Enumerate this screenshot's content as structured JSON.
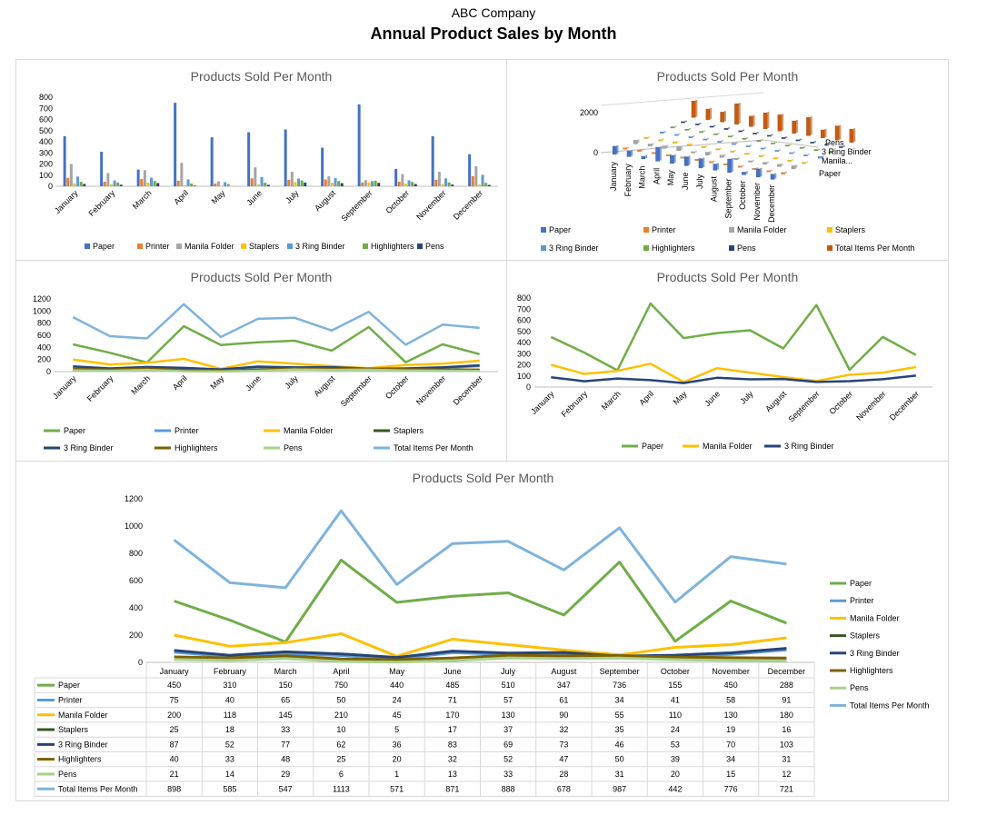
{
  "header": {
    "company": "ABC Company",
    "title": "Annual Product Sales by Month"
  },
  "colors": {
    "Paper": "#70ad47",
    "Printer": "#5b9bd5",
    "Manila Folder": "#ffc000",
    "Staplers": "#375623",
    "3 Ring Binder": "#264478",
    "Highlighters": "#7f6000",
    "Pens": "#a9d18e",
    "Total Items Per Month": "#7eb3dc"
  },
  "bar_colors": {
    "Paper": "#4472c4",
    "Printer": "#ed7d31",
    "Manila Folder": "#a5a5a5",
    "Staplers": "#ffc000",
    "3 Ring Binder": "#5b9bd5",
    "Highlighters": "#70ad47",
    "Pens": "#264478",
    "Total Items Per Month": "#c55a11"
  },
  "chart_data": [
    {
      "type": "bar",
      "title": "Products Sold Per Month",
      "ylim": [
        0,
        800
      ],
      "yticks": [
        0,
        100,
        200,
        300,
        400,
        500,
        600,
        700,
        800
      ],
      "categories": [
        "January",
        "February",
        "March",
        "April",
        "May",
        "June",
        "July",
        "August",
        "September",
        "October",
        "November",
        "December"
      ],
      "series": [
        {
          "name": "Paper",
          "values": [
            450,
            310,
            150,
            750,
            440,
            485,
            510,
            347,
            736,
            155,
            450,
            288
          ]
        },
        {
          "name": "Printer",
          "values": [
            75,
            40,
            65,
            50,
            24,
            71,
            57,
            61,
            34,
            41,
            58,
            91
          ]
        },
        {
          "name": "Manila Folder",
          "values": [
            200,
            118,
            145,
            210,
            45,
            170,
            130,
            90,
            55,
            110,
            130,
            180
          ]
        },
        {
          "name": "Staplers",
          "values": [
            25,
            18,
            33,
            10,
            5,
            17,
            37,
            32,
            35,
            24,
            19,
            16
          ]
        },
        {
          "name": "3 Ring Binder",
          "values": [
            87,
            52,
            77,
            62,
            36,
            83,
            69,
            73,
            46,
            53,
            70,
            103
          ]
        },
        {
          "name": "Highlighters",
          "values": [
            40,
            33,
            48,
            25,
            20,
            32,
            52,
            47,
            50,
            39,
            34,
            31
          ]
        },
        {
          "name": "Pens",
          "values": [
            21,
            14,
            29,
            6,
            1,
            13,
            33,
            28,
            31,
            20,
            15,
            12
          ]
        }
      ],
      "legend": "bottom"
    },
    {
      "type": "bar",
      "subtype": "3d-column",
      "title": "Products Sold Per Month",
      "yticks": [
        0,
        2000
      ],
      "depth_labels": [
        "Pens",
        "3 Ring Binder",
        "Manila...",
        "Paper"
      ],
      "categories": [
        "January",
        "February",
        "March",
        "April",
        "May",
        "June",
        "July",
        "August",
        "September",
        "October",
        "November",
        "December"
      ],
      "series": [
        {
          "name": "Paper",
          "values": [
            450,
            310,
            150,
            750,
            440,
            485,
            510,
            347,
            736,
            155,
            450,
            288
          ]
        },
        {
          "name": "Printer",
          "values": [
            75,
            40,
            65,
            50,
            24,
            71,
            57,
            61,
            34,
            41,
            58,
            91
          ]
        },
        {
          "name": "Manila Folder",
          "values": [
            200,
            118,
            145,
            210,
            45,
            170,
            130,
            90,
            55,
            110,
            130,
            180
          ]
        },
        {
          "name": "Staplers",
          "values": [
            25,
            18,
            33,
            10,
            5,
            17,
            37,
            32,
            35,
            24,
            19,
            16
          ]
        },
        {
          "name": "3 Ring Binder",
          "values": [
            87,
            52,
            77,
            62,
            36,
            83,
            69,
            73,
            46,
            53,
            70,
            103
          ]
        },
        {
          "name": "Highlighters",
          "values": [
            40,
            33,
            48,
            25,
            20,
            32,
            52,
            47,
            50,
            39,
            34,
            31
          ]
        },
        {
          "name": "Pens",
          "values": [
            21,
            14,
            29,
            6,
            1,
            13,
            33,
            28,
            31,
            20,
            15,
            12
          ]
        },
        {
          "name": "Total Items Per Month",
          "values": [
            898,
            585,
            547,
            1113,
            571,
            871,
            888,
            678,
            987,
            442,
            776,
            721
          ]
        }
      ],
      "legend": "bottom"
    },
    {
      "type": "line",
      "title": "Products Sold Per Month",
      "ylim": [
        0,
        1200
      ],
      "yticks": [
        0,
        200,
        400,
        600,
        800,
        1000,
        1200
      ],
      "categories": [
        "January",
        "February",
        "March",
        "April",
        "May",
        "June",
        "July",
        "August",
        "September",
        "October",
        "November",
        "December"
      ],
      "series": [
        {
          "name": "Paper",
          "values": [
            450,
            310,
            150,
            750,
            440,
            485,
            510,
            347,
            736,
            155,
            450,
            288
          ]
        },
        {
          "name": "Printer",
          "values": [
            75,
            40,
            65,
            50,
            24,
            71,
            57,
            61,
            34,
            41,
            58,
            91
          ]
        },
        {
          "name": "Manila Folder",
          "values": [
            200,
            118,
            145,
            210,
            45,
            170,
            130,
            90,
            55,
            110,
            130,
            180
          ]
        },
        {
          "name": "Staplers",
          "values": [
            25,
            18,
            33,
            10,
            5,
            17,
            37,
            32,
            35,
            24,
            19,
            16
          ]
        },
        {
          "name": "3 Ring Binder",
          "values": [
            87,
            52,
            77,
            62,
            36,
            83,
            69,
            73,
            46,
            53,
            70,
            103
          ]
        },
        {
          "name": "Highlighters",
          "values": [
            40,
            33,
            48,
            25,
            20,
            32,
            52,
            47,
            50,
            39,
            34,
            31
          ]
        },
        {
          "name": "Pens",
          "values": [
            21,
            14,
            29,
            6,
            1,
            13,
            33,
            28,
            31,
            20,
            15,
            12
          ]
        },
        {
          "name": "Total Items Per Month",
          "values": [
            898,
            585,
            547,
            1113,
            571,
            871,
            888,
            678,
            987,
            442,
            776,
            721
          ]
        }
      ],
      "legend": "bottom"
    },
    {
      "type": "line",
      "title": "Products Sold Per Month",
      "ylim": [
        0,
        800
      ],
      "yticks": [
        0,
        100,
        200,
        300,
        400,
        500,
        600,
        700,
        800
      ],
      "categories": [
        "January",
        "February",
        "March",
        "April",
        "May",
        "June",
        "July",
        "August",
        "September",
        "October",
        "November",
        "December"
      ],
      "series": [
        {
          "name": "Paper",
          "values": [
            450,
            310,
            150,
            750,
            440,
            485,
            510,
            347,
            736,
            155,
            450,
            288
          ]
        },
        {
          "name": "Manila Folder",
          "values": [
            200,
            118,
            145,
            210,
            45,
            170,
            130,
            90,
            55,
            110,
            130,
            180
          ]
        },
        {
          "name": "3 Ring Binder",
          "values": [
            87,
            52,
            77,
            62,
            36,
            83,
            69,
            73,
            46,
            53,
            70,
            103
          ]
        }
      ],
      "legend": "bottom"
    },
    {
      "type": "line",
      "subtype": "line-with-data-table",
      "title": "Products Sold Per Month",
      "ylim": [
        0,
        1200
      ],
      "yticks": [
        0,
        200,
        400,
        600,
        800,
        1000,
        1200
      ],
      "categories": [
        "January",
        "February",
        "March",
        "April",
        "May",
        "June",
        "July",
        "August",
        "September",
        "October",
        "November",
        "December"
      ],
      "series": [
        {
          "name": "Paper",
          "values": [
            450,
            310,
            150,
            750,
            440,
            485,
            510,
            347,
            736,
            155,
            450,
            288
          ]
        },
        {
          "name": "Printer",
          "values": [
            75,
            40,
            65,
            50,
            24,
            71,
            57,
            61,
            34,
            41,
            58,
            91
          ]
        },
        {
          "name": "Manila Folder",
          "values": [
            200,
            118,
            145,
            210,
            45,
            170,
            130,
            90,
            55,
            110,
            130,
            180
          ]
        },
        {
          "name": "Staplers",
          "values": [
            25,
            18,
            33,
            10,
            5,
            17,
            37,
            32,
            35,
            24,
            19,
            16
          ]
        },
        {
          "name": "3 Ring Binder",
          "values": [
            87,
            52,
            77,
            62,
            36,
            83,
            69,
            73,
            46,
            53,
            70,
            103
          ]
        },
        {
          "name": "Highlighters",
          "values": [
            40,
            33,
            48,
            25,
            20,
            32,
            52,
            47,
            50,
            39,
            34,
            31
          ]
        },
        {
          "name": "Pens",
          "values": [
            21,
            14,
            29,
            6,
            1,
            13,
            33,
            28,
            31,
            20,
            15,
            12
          ]
        },
        {
          "name": "Total Items Per Month",
          "values": [
            898,
            585,
            547,
            1113,
            571,
            871,
            888,
            678,
            987,
            442,
            776,
            721
          ]
        }
      ],
      "legend": "right"
    }
  ]
}
